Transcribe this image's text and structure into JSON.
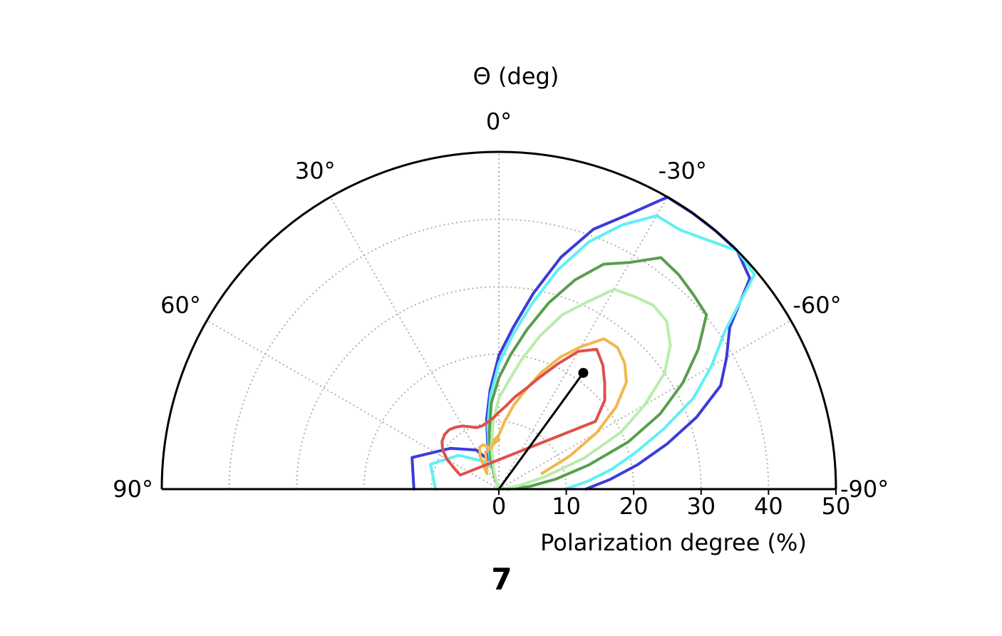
{
  "chart_data": {
    "type": "polar-contour",
    "theta_title": "Θ (deg)",
    "r_title": "Polarization degree (%)",
    "panel_label": "7",
    "theta_range_deg": [
      -90,
      90
    ],
    "r_range": [
      0,
      50
    ],
    "theta_ticks": [
      {
        "value": 0,
        "label": "0°"
      },
      {
        "value": 30,
        "label": "30°"
      },
      {
        "value": -30,
        "label": "-30°"
      },
      {
        "value": 60,
        "label": "60°"
      },
      {
        "value": -60,
        "label": "-60°"
      },
      {
        "value": 90,
        "label": "90°"
      },
      {
        "value": -90,
        "label": "-90°"
      }
    ],
    "r_ticks": [
      {
        "value": 0,
        "label": "0"
      },
      {
        "value": 10,
        "label": "10"
      },
      {
        "value": 20,
        "label": "20"
      },
      {
        "value": 30,
        "label": "30"
      },
      {
        "value": 40,
        "label": "40"
      },
      {
        "value": 50,
        "label": "50"
      }
    ],
    "grid": true,
    "best_fit": {
      "theta_deg": -36,
      "r": 21.3
    },
    "contours": [
      {
        "color": "#3b3bdb",
        "points": [
          [
            -90,
            12.9
          ],
          [
            -85,
            16.6
          ],
          [
            -80,
            20.9
          ],
          [
            -75,
            25.8
          ],
          [
            -70,
            31.2
          ],
          [
            -65,
            36.3
          ],
          [
            -60,
            39.0
          ],
          [
            -55,
            41.8
          ],
          [
            -50,
            48.6
          ],
          [
            -45,
            50
          ],
          [
            -40,
            50
          ],
          [
            -35,
            50
          ],
          [
            -30,
            50
          ],
          [
            -25,
            44.8
          ],
          [
            -20,
            41.0
          ],
          [
            -15,
            35.6
          ],
          [
            -10,
            29.5
          ],
          [
            -5,
            24.0
          ],
          [
            0,
            19.8
          ],
          [
            5,
            14.8
          ],
          [
            10,
            10.5
          ],
          [
            15,
            6.3
          ],
          [
            20,
            4.6
          ],
          [
            30,
            6.7
          ],
          [
            50,
            9.4
          ],
          [
            70,
            13.7
          ],
          [
            90,
            12.6
          ]
        ]
      },
      {
        "color": "#5ff0f5",
        "points": [
          [
            -90,
            9.8
          ],
          [
            -85,
            13.2
          ],
          [
            -80,
            17.0
          ],
          [
            -75,
            21.0
          ],
          [
            -70,
            26.0
          ],
          [
            -65,
            31.8
          ],
          [
            -60,
            36.4
          ],
          [
            -55,
            41.0
          ],
          [
            -50,
            49.5
          ],
          [
            -45,
            50
          ],
          [
            -40,
            48.2
          ],
          [
            -35,
            46.9
          ],
          [
            -30,
            46.8
          ],
          [
            -25,
            43.2
          ],
          [
            -20,
            39.0
          ],
          [
            -15,
            33.6
          ],
          [
            -10,
            27.8
          ],
          [
            -5,
            22.8
          ],
          [
            0,
            18.6
          ],
          [
            5,
            14.0
          ],
          [
            10,
            9.5
          ],
          [
            15,
            5.5
          ],
          [
            20,
            3.5
          ],
          [
            30,
            4.8
          ],
          [
            50,
            7.8
          ],
          [
            70,
            10.8
          ],
          [
            90,
            9.4
          ]
        ]
      },
      {
        "color": "#5a9e4f",
        "points": [
          [
            -90,
            1.4
          ],
          [
            -85,
            4.6
          ],
          [
            -80,
            8.6
          ],
          [
            -75,
            13.8
          ],
          [
            -70,
            20.4
          ],
          [
            -65,
            26.4
          ],
          [
            -60,
            31.5
          ],
          [
            -55,
            36.1
          ],
          [
            -50,
            40.2
          ],
          [
            -45,
            40.8
          ],
          [
            -40,
            41.5
          ],
          [
            -35,
            41.9
          ],
          [
            -30,
            38.8
          ],
          [
            -25,
            36.8
          ],
          [
            -20,
            33.0
          ],
          [
            -15,
            28.6
          ],
          [
            -10,
            24.0
          ],
          [
            -5,
            20.0
          ],
          [
            0,
            16.5
          ],
          [
            5,
            12.8
          ],
          [
            10,
            8.3
          ],
          [
            15,
            4.7
          ],
          [
            20,
            1.8
          ],
          [
            30,
            0.3
          ],
          [
            60,
            0.2
          ],
          [
            90,
            0.3
          ]
        ]
      },
      {
        "color": "#b8edaa",
        "points": [
          [
            -90,
            0.5
          ],
          [
            -80,
            3.2
          ],
          [
            -75,
            7.0
          ],
          [
            -70,
            13.5
          ],
          [
            -65,
            20.0
          ],
          [
            -60,
            25.0
          ],
          [
            -55,
            30.0
          ],
          [
            -50,
            33.2
          ],
          [
            -45,
            35.2
          ],
          [
            -40,
            35.6
          ],
          [
            -35,
            34.9
          ],
          [
            -30,
            34.2
          ],
          [
            -25,
            30.5
          ],
          [
            -20,
            27.5
          ],
          [
            -15,
            23.5
          ],
          [
            -10,
            19.5
          ],
          [
            -5,
            16.0
          ],
          [
            0,
            13.5
          ],
          [
            5,
            10.0
          ],
          [
            10,
            6.4
          ],
          [
            15,
            3.0
          ],
          [
            20,
            1.0
          ],
          [
            30,
            0.4
          ],
          [
            60,
            0.3
          ],
          [
            90,
            0.4
          ]
        ]
      },
      {
        "color": "#f0b84d",
        "points": [
          [
            -70,
            6.8
          ],
          [
            -65,
            11.6
          ],
          [
            -60,
            16.8
          ],
          [
            -55,
            21.2
          ],
          [
            -50,
            24.7
          ],
          [
            -45,
            26.4
          ],
          [
            -40,
            27.4
          ],
          [
            -35,
            27.2
          ],
          [
            -30,
            24.4
          ],
          [
            -25,
            21.6
          ],
          [
            -20,
            18.4
          ],
          [
            -15,
            15.2
          ],
          [
            -10,
            12.6
          ],
          [
            -5,
            10.1
          ],
          [
            0,
            8.0
          ],
          [
            5,
            7.4
          ],
          [
            10,
            6.2
          ],
          [
            15,
            6.5
          ],
          [
            20,
            7.0
          ],
          [
            25,
            6.8
          ],
          [
            30,
            5.5
          ],
          [
            35,
            3.6
          ],
          [
            38,
            2.9
          ],
          [
            30,
            3.5
          ],
          [
            20,
            5.8
          ],
          [
            0,
            7.4
          ]
        ]
      },
      {
        "color": "#e0504a",
        "points": [
          [
            -50,
            20.5
          ],
          [
            -45,
            22.2
          ],
          [
            -40,
            24.0
          ],
          [
            -35,
            25.3
          ],
          [
            -30,
            23.6
          ],
          [
            -25,
            20.4
          ],
          [
            -20,
            17.6
          ],
          [
            -15,
            15.4
          ],
          [
            -10,
            13.9
          ],
          [
            -5,
            12.4
          ],
          [
            0,
            11.4
          ],
          [
            5,
            10.5
          ],
          [
            10,
            10.0
          ],
          [
            15,
            9.7
          ],
          [
            20,
            9.7
          ],
          [
            25,
            10.2
          ],
          [
            30,
            10.8
          ],
          [
            35,
            11.2
          ],
          [
            40,
            11.5
          ],
          [
            45,
            11.4
          ],
          [
            50,
            11.0
          ],
          [
            55,
            10.2
          ],
          [
            60,
            8.9
          ],
          [
            65,
            7.3
          ],
          [
            70,
            6.1
          ],
          [
            -55,
            17.5
          ],
          [
            -50,
            20.5
          ]
        ]
      }
    ]
  }
}
